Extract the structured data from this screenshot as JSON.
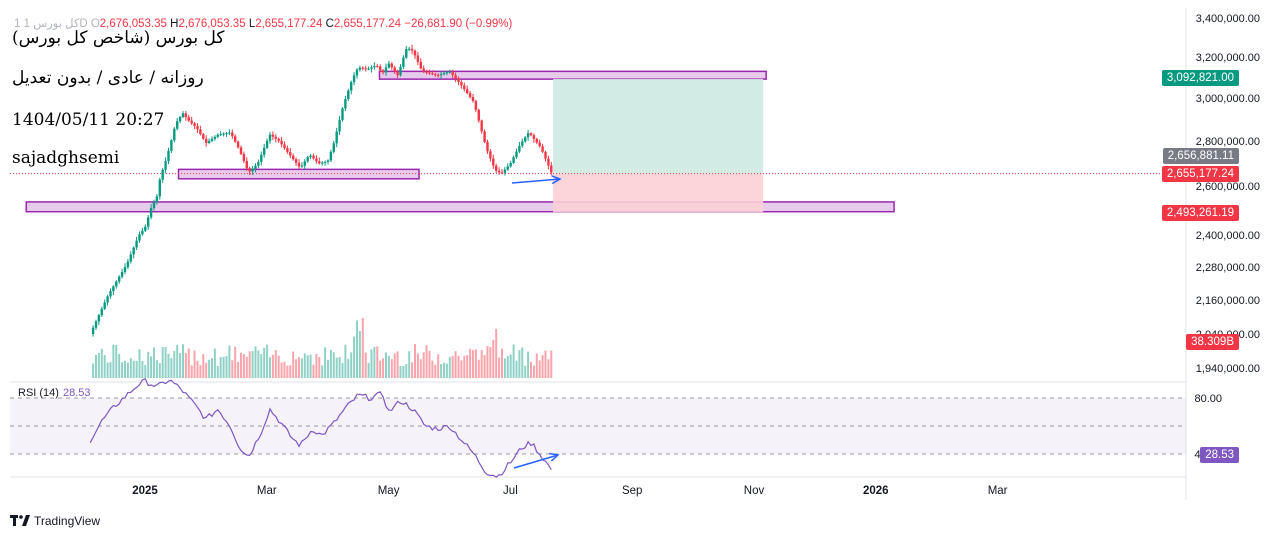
{
  "header": {
    "symbol": "1  کل بورس  1D",
    "open_label": "O",
    "open": "2,676,053.35",
    "high_label": "H",
    "high": "2,676,053.35",
    "low_label": "L",
    "low": "2,655,177.24",
    "close_label": "C",
    "close": "2,655,177.24",
    "change": "−26,681.90 (−0.99%)"
  },
  "notes": {
    "line1": "کل بورس (شاخص کل بورس)",
    "line2": "روزانه / عادی / بدون تعدیل",
    "line3": "1404/05/11 20:27",
    "line4": "sajadghsemi"
  },
  "price_tags": {
    "target": "3,092,821.00",
    "current_alt": "2,656,881.11",
    "current": "2,655,177.24",
    "stop": "2,493,261.19",
    "volume": "38.309B",
    "rsi": "28.53"
  },
  "colors": {
    "up": "#089981",
    "down": "#f23645",
    "zone_fill": "#e1bee7",
    "zone_stroke": "#9c27b0",
    "target_zone": "#cdeae2",
    "stop_zone": "#fbd0d6",
    "rsi_line": "#7e57c2",
    "arrow": "#2962ff",
    "tag_green": "#089981",
    "tag_gray": "#787b86",
    "tag_red": "#f23645",
    "tag_purple": "#7e57c2"
  },
  "rsi": {
    "label": "RSI (14)",
    "value": "28.53",
    "upper": 80,
    "middle": 60,
    "lower": 40
  },
  "brand": "TradingView",
  "chart_data": {
    "type": "candlestick",
    "series_name": "کل بورس",
    "y_ticks": [
      "3,400,000.00",
      "3,200,000.00",
      "3,000,000.00",
      "2,800,000.00",
      "2,600,000.00",
      "2,400,000.00",
      "2,280,000.00",
      "2,160,000.00",
      "2,040,000.00",
      "1,940,000.00"
    ],
    "y_tick_values": [
      3400000,
      3200000,
      3000000,
      2800000,
      2600000,
      2400000,
      2280000,
      2160000,
      2040000,
      1940000
    ],
    "x_ticks": [
      "2025",
      "Mar",
      "May",
      "Jul",
      "Sep",
      "Nov",
      "2026",
      "Mar"
    ],
    "x_tick_months": [
      0,
      2,
      4,
      6,
      8,
      10,
      12,
      14
    ],
    "path_knots": [
      [
        -0.9,
        2040000
      ],
      [
        -0.6,
        2180000
      ],
      [
        -0.3,
        2290000
      ],
      [
        -0.1,
        2400000
      ],
      [
        0.0,
        2430000
      ],
      [
        0.1,
        2510000
      ],
      [
        0.2,
        2560000
      ],
      [
        0.25,
        2640000
      ],
      [
        0.35,
        2720000
      ],
      [
        0.45,
        2820000
      ],
      [
        0.5,
        2880000
      ],
      [
        0.62,
        2930000
      ],
      [
        0.7,
        2900000
      ],
      [
        0.85,
        2860000
      ],
      [
        1.0,
        2790000
      ],
      [
        1.2,
        2830000
      ],
      [
        1.4,
        2840000
      ],
      [
        1.55,
        2760000
      ],
      [
        1.7,
        2660000
      ],
      [
        1.85,
        2700000
      ],
      [
        2.05,
        2830000
      ],
      [
        2.2,
        2800000
      ],
      [
        2.4,
        2730000
      ],
      [
        2.55,
        2680000
      ],
      [
        2.7,
        2740000
      ],
      [
        2.85,
        2700000
      ],
      [
        3.0,
        2710000
      ],
      [
        3.1,
        2790000
      ],
      [
        3.25,
        2960000
      ],
      [
        3.4,
        3090000
      ],
      [
        3.5,
        3150000
      ],
      [
        3.65,
        3140000
      ],
      [
        3.8,
        3160000
      ],
      [
        3.9,
        3120000
      ],
      [
        4.0,
        3170000
      ],
      [
        4.15,
        3110000
      ],
      [
        4.3,
        3250000
      ],
      [
        4.4,
        3230000
      ],
      [
        4.55,
        3130000
      ],
      [
        4.8,
        3110000
      ],
      [
        5.0,
        3130000
      ],
      [
        5.2,
        3060000
      ],
      [
        5.4,
        2980000
      ],
      [
        5.6,
        2770000
      ],
      [
        5.75,
        2670000
      ],
      [
        5.85,
        2655000
      ],
      [
        6.0,
        2700000
      ],
      [
        6.15,
        2780000
      ],
      [
        6.3,
        2840000
      ],
      [
        6.5,
        2770000
      ],
      [
        6.68,
        2655177
      ]
    ],
    "rsi_knots": [
      [
        -0.9,
        50
      ],
      [
        -0.7,
        64
      ],
      [
        -0.5,
        74
      ],
      [
        -0.3,
        82
      ],
      [
        -0.1,
        90
      ],
      [
        0.0,
        92
      ],
      [
        0.2,
        88
      ],
      [
        0.4,
        93
      ],
      [
        0.6,
        86
      ],
      [
        0.8,
        76
      ],
      [
        1.0,
        65
      ],
      [
        1.2,
        72
      ],
      [
        1.4,
        60
      ],
      [
        1.55,
        45
      ],
      [
        1.7,
        38
      ],
      [
        1.9,
        55
      ],
      [
        2.05,
        72
      ],
      [
        2.2,
        64
      ],
      [
        2.4,
        52
      ],
      [
        2.55,
        46
      ],
      [
        2.75,
        58
      ],
      [
        2.9,
        53
      ],
      [
        3.1,
        62
      ],
      [
        3.3,
        73
      ],
      [
        3.5,
        82
      ],
      [
        3.7,
        80
      ],
      [
        3.9,
        83
      ],
      [
        4.0,
        70
      ],
      [
        4.2,
        78
      ],
      [
        4.4,
        72
      ],
      [
        4.6,
        60
      ],
      [
        4.8,
        58
      ],
      [
        5.0,
        60
      ],
      [
        5.2,
        50
      ],
      [
        5.4,
        40
      ],
      [
        5.6,
        27
      ],
      [
        5.8,
        24
      ],
      [
        6.0,
        34
      ],
      [
        6.2,
        45
      ],
      [
        6.35,
        48
      ],
      [
        6.5,
        39
      ],
      [
        6.68,
        28.53
      ]
    ],
    "zones": [
      {
        "from_month": 0.55,
        "to_month": 4.5,
        "low": 2632000,
        "high": 2674000
      },
      {
        "from_month": 3.85,
        "to_month": 10.2,
        "low": 3092000,
        "high": 3130000
      },
      {
        "from_month": -1.95,
        "to_month": 12.3,
        "low": 2495000,
        "high": 2535000
      }
    ],
    "position": {
      "from_month": 6.7,
      "to_month": 10.15,
      "entry": 2655177.24,
      "target": 3092821.0,
      "stop": 2493261.19
    },
    "current_line": 2655177.24,
    "volume_last": "38.309B",
    "y_axis": "right",
    "grid": false
  }
}
